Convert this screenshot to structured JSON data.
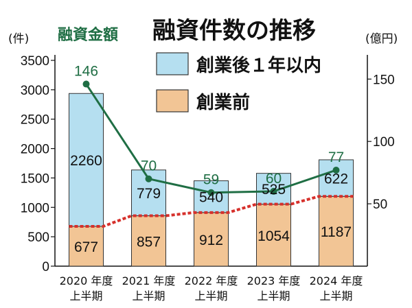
{
  "chart_data": {
    "type": "bar",
    "title": "融資件数の推移",
    "left_axis_unit": "(件)",
    "right_axis_unit": "(億円)",
    "categories": [
      [
        "2020 年度",
        "上半期"
      ],
      [
        "2021 年度",
        "上半期"
      ],
      [
        "2022 年度",
        "上半期"
      ],
      [
        "2023 年度",
        "上半期"
      ],
      [
        "2024 年度",
        "上半期"
      ]
    ],
    "ylim": [
      0,
      3500
    ],
    "y_ticks": [
      0,
      500,
      1000,
      1500,
      2000,
      2500,
      3000,
      3500
    ],
    "y2lim": [
      0,
      165
    ],
    "y2_ticks": [
      50,
      100,
      150
    ],
    "series": [
      {
        "name": "創業前",
        "values": [
          677,
          857,
          912,
          1054,
          1187
        ],
        "color": "#f2c595"
      },
      {
        "name": "創業後１年以内",
        "values": [
          2260,
          779,
          540,
          525,
          622
        ],
        "color": "#b5dff0"
      }
    ],
    "line_series": {
      "name": "融資金額",
      "values": [
        146,
        70,
        59,
        60,
        77
      ],
      "color": "#1f6e44"
    },
    "dotted_line_color": "#d6302b",
    "grid": false,
    "legend": "top-right"
  }
}
